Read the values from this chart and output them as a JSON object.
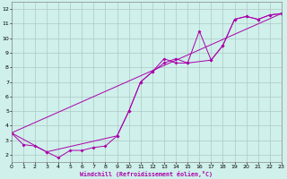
{
  "xlabel": "Windchill (Refroidissement éolien,°C)",
  "xlim": [
    0,
    23
  ],
  "ylim": [
    1.5,
    12.5
  ],
  "yticks": [
    2,
    3,
    4,
    5,
    6,
    7,
    8,
    9,
    10,
    11,
    12
  ],
  "xticks": [
    0,
    1,
    2,
    3,
    4,
    5,
    6,
    7,
    8,
    9,
    10,
    11,
    12,
    13,
    14,
    15,
    16,
    17,
    18,
    19,
    20,
    21,
    22,
    23
  ],
  "bg_color": "#cff0eb",
  "grid_color": "#b0c8c4",
  "line_color": "#aa00aa",
  "line1_x": [
    0,
    1,
    2,
    3,
    4,
    5,
    6,
    7,
    8,
    9,
    10,
    11,
    12,
    13,
    14,
    15,
    16,
    17,
    18,
    19,
    20,
    21,
    22,
    23
  ],
  "line1_y": [
    3.5,
    2.7,
    2.6,
    2.2,
    1.8,
    2.3,
    2.3,
    2.5,
    2.6,
    3.3,
    5.0,
    7.0,
    7.7,
    8.3,
    8.6,
    8.3,
    10.5,
    8.5,
    9.5,
    11.3,
    11.5,
    11.3,
    11.6,
    11.7
  ],
  "line2_x": [
    0,
    3,
    9,
    10,
    11,
    12,
    13,
    14,
    15,
    17,
    18,
    19,
    20,
    21,
    22,
    23
  ],
  "line2_y": [
    3.5,
    2.2,
    3.3,
    5.0,
    7.0,
    7.7,
    8.6,
    8.3,
    8.3,
    8.5,
    9.5,
    11.3,
    11.5,
    11.3,
    11.6,
    11.7
  ],
  "line3_x": [
    0,
    23
  ],
  "line3_y": [
    3.5,
    11.7
  ]
}
